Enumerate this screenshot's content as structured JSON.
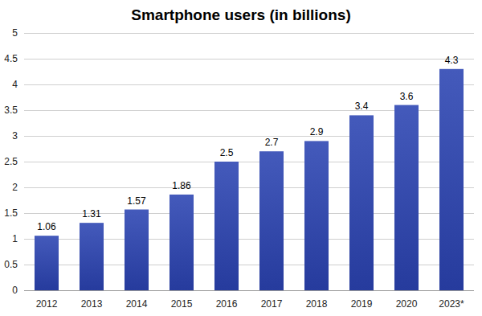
{
  "chart_data": {
    "type": "bar",
    "title": "Smartphone users (in billions)",
    "categories": [
      "2012",
      "2013",
      "2014",
      "2015",
      "2016",
      "2017",
      "2018",
      "2019",
      "2020",
      "2023*"
    ],
    "values": [
      1.06,
      1.31,
      1.57,
      1.86,
      2.5,
      2.7,
      2.9,
      3.4,
      3.6,
      4.3
    ],
    "color": "#2b43b2",
    "ylim": [
      0,
      5
    ],
    "yticks": [
      0,
      0.5,
      1,
      1.5,
      2,
      2.5,
      3,
      3.5,
      4,
      4.5,
      5
    ],
    "grid": true,
    "data_labels": true
  }
}
